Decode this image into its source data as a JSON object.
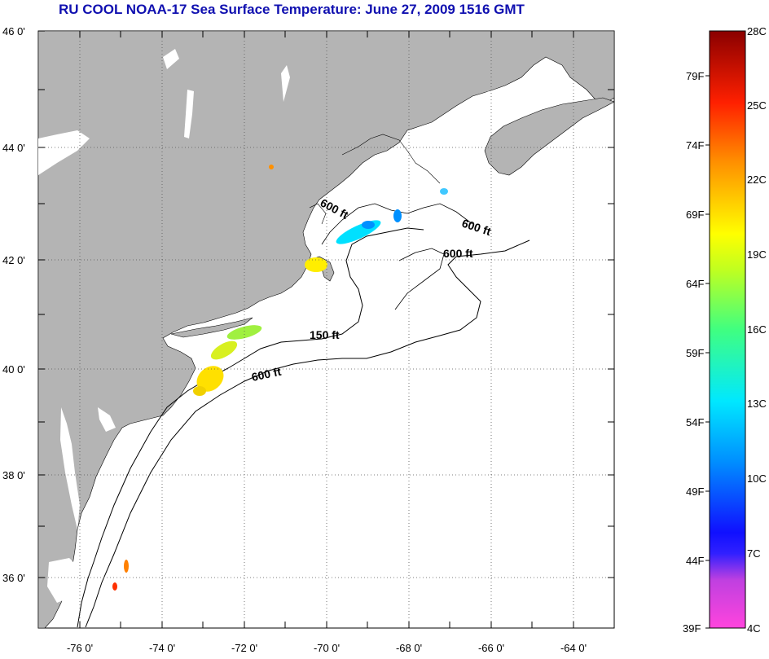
{
  "title": "RU COOL  NOAA-17  Sea Surface Temperature:  June 27, 2009 1516 GMT",
  "map": {
    "lon_ticks": [
      "-76 0'",
      "-74 0'",
      "-72 0'",
      "-70 0'",
      "-68 0'",
      "-66 0'",
      "-64 0'"
    ],
    "lat_ticks": [
      "46 0'",
      "44 0'",
      "42 0'",
      "40 0'",
      "38 0'",
      "36 0'"
    ],
    "lon_range": [
      -77,
      -63
    ],
    "lat_range": [
      35,
      46
    ],
    "grid": "dotted",
    "land_color": "#b4b4b4",
    "ocean_color": "#ffffff",
    "contour_labels": [
      "600 ft",
      "600 ft",
      "600 ft",
      "150 ft",
      "600 ft"
    ]
  },
  "colorbar": {
    "fahrenheit_labels": [
      "79F",
      "74F",
      "69F",
      "64F",
      "59F",
      "54F",
      "49F",
      "44F",
      "39F"
    ],
    "celsius_labels": [
      "28C",
      "25C",
      "22C",
      "19C",
      "16C",
      "13C",
      "10C",
      "7C",
      "4C"
    ],
    "range_c": [
      4,
      28
    ],
    "colors": [
      "#ff44dd",
      "#9a3ad8",
      "#1010ff",
      "#0090ff",
      "#00e8ff",
      "#40ff80",
      "#c0ff20",
      "#ffff00",
      "#ff9000",
      "#ff2000",
      "#8a0000"
    ]
  }
}
